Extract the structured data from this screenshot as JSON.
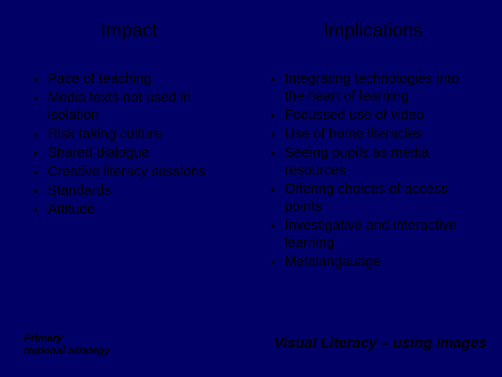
{
  "background_color": "#000066",
  "text_color": "#000000",
  "left": {
    "heading": "Impact",
    "items": [
      "Pace of teaching",
      "Media texts not used in isolation",
      "Risk taking culture",
      "Shared dialogue",
      "Creative literacy sessions",
      "Standards",
      "Attitude"
    ]
  },
  "right": {
    "heading": "Implications",
    "items": [
      "Integrating technologies into the heart of learning",
      "Focussed use of video",
      "Use of home literacies",
      "Seeing pupils as media resources",
      "Offering choices of access points",
      "Investigative and interactive learning",
      "Metalangauage"
    ]
  },
  "footer": {
    "left_line1": "Primary",
    "left_line2": "National Strategy",
    "right": "Visual Literacy – using images"
  }
}
